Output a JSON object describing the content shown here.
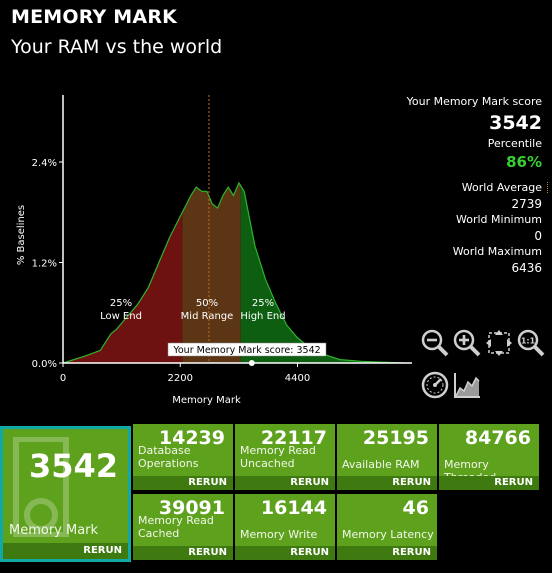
{
  "header": {
    "title": "MEMORY MARK",
    "subtitle": "Your RAM vs the world"
  },
  "chart_data": {
    "type": "area",
    "xlabel": "Memory Mark",
    "ylabel": "% Baselines",
    "x_ticks": [
      "0",
      "2200",
      "4400"
    ],
    "y_ticks": [
      "0.0%",
      "1.2%",
      "2.4%"
    ],
    "xlim": [
      0,
      6436
    ],
    "ylim": [
      0,
      3.2
    ],
    "x": [
      0,
      400,
      700,
      800,
      900,
      1000,
      1200,
      1400,
      1600,
      1800,
      2000,
      2200,
      2400,
      2500,
      2600,
      2700,
      2800,
      2900,
      3000,
      3100,
      3200,
      3300,
      3400,
      3600,
      3800,
      4000,
      4200,
      4400,
      4600,
      4800,
      5000,
      5200,
      5600,
      6000,
      6436
    ],
    "y": [
      0,
      0.08,
      0.15,
      0.25,
      0.35,
      0.4,
      0.55,
      0.7,
      0.9,
      1.2,
      1.5,
      1.75,
      2.0,
      2.1,
      2.05,
      2.05,
      1.9,
      1.85,
      2.0,
      2.1,
      2.0,
      2.15,
      2.05,
      1.4,
      1.0,
      0.7,
      0.45,
      0.3,
      0.2,
      0.13,
      0.08,
      0.04,
      0.02,
      0.01,
      0
    ],
    "bands": [
      {
        "pct": "25%",
        "label": "Low End",
        "from": 0,
        "to": 2239,
        "color": "#6e1111"
      },
      {
        "pct": "50%",
        "label": "Mid Range",
        "from": 2239,
        "to": 3335,
        "color": "#5c3514"
      },
      {
        "pct": "25%",
        "label": "High End",
        "from": 3335,
        "to": 6436,
        "color": "#0d5e10"
      }
    ],
    "world_average": 2739,
    "your_score": 3542,
    "your_score_label": "Your Memory Mark score: 3542"
  },
  "stats": {
    "score_label": "Your Memory Mark score",
    "score": "3542",
    "percentile_label": "Percentile",
    "percentile": "86%",
    "world_average_label": "World Average",
    "world_average": "2739",
    "world_minimum_label": "World Minimum",
    "world_minimum": "0",
    "world_maximum_label": "World Maximum",
    "world_maximum": "6436"
  },
  "tools": [
    {
      "name": "zoom-out-icon"
    },
    {
      "name": "zoom-in-icon"
    },
    {
      "name": "fit-to-window-icon"
    },
    {
      "name": "zoom-1-to-1-icon"
    },
    {
      "name": "gauge-icon"
    },
    {
      "name": "chart-icon"
    }
  ],
  "tiles": {
    "memory_mark": {
      "score": "3542",
      "name": "Memory Mark",
      "rerun": "RERUN"
    },
    "database_operations": {
      "score": "14239",
      "name": "Database Operations",
      "rerun": "RERUN"
    },
    "memory_read_uncached": {
      "score": "22117",
      "name": "Memory Read Uncached",
      "rerun": "RERUN"
    },
    "available_ram": {
      "score": "25195",
      "name": "Available RAM",
      "rerun": "RERUN"
    },
    "memory_threaded": {
      "score": "84766",
      "name": "Memory Threaded",
      "rerun": "RERUN"
    },
    "memory_read_cached": {
      "score": "39091",
      "name": "Memory Read Cached",
      "rerun": "RERUN"
    },
    "memory_write": {
      "score": "16144",
      "name": "Memory Write",
      "rerun": "RERUN"
    },
    "memory_latency": {
      "score": "46",
      "name": "Memory Latency",
      "rerun": "RERUN"
    }
  },
  "colors": {
    "accent_green": "#39d031",
    "tile_green": "#5ea11d",
    "rerun_bar": "#3e7a0f",
    "selected_border": "#11a9a6"
  }
}
